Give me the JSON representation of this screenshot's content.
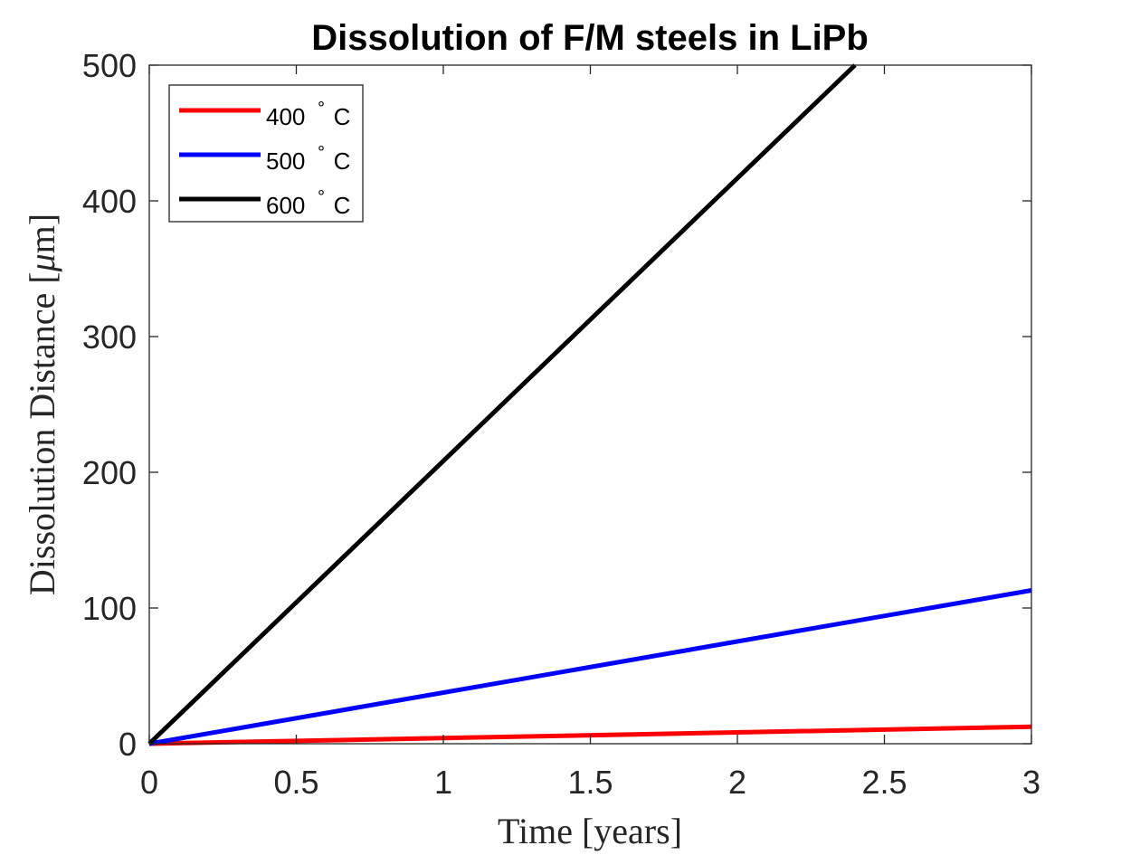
{
  "chart_data": {
    "type": "line",
    "title": "Dissolution of F/M steels in LiPb",
    "xlabel": "Time [years]",
    "ylabel_main": "Dissolution Distance [",
    "ylabel_mu": "μ",
    "ylabel_unit": "m]",
    "xlim": [
      0,
      3
    ],
    "ylim": [
      0,
      500
    ],
    "xticks": [
      0,
      0.5,
      1,
      1.5,
      2,
      2.5,
      3
    ],
    "xtick_labels": [
      "0",
      "0.5",
      "1",
      "1.5",
      "2",
      "2.5",
      "3"
    ],
    "yticks": [
      0,
      100,
      200,
      300,
      400,
      500
    ],
    "ytick_labels": [
      "0",
      "100",
      "200",
      "300",
      "400",
      "500"
    ],
    "grid": false,
    "legend_position": "top-left",
    "degree_symbol": "∘",
    "series": [
      {
        "name": "400",
        "unit": "C",
        "color": "#ff0000",
        "x": [
          0,
          3
        ],
        "y": [
          0,
          12.5
        ]
      },
      {
        "name": "500",
        "unit": "C",
        "color": "#0000ff",
        "x": [
          0,
          3
        ],
        "y": [
          0,
          113
        ]
      },
      {
        "name": "600",
        "unit": "C",
        "color": "#000000",
        "x": [
          0,
          2.4
        ],
        "y": [
          0,
          500
        ]
      }
    ]
  }
}
